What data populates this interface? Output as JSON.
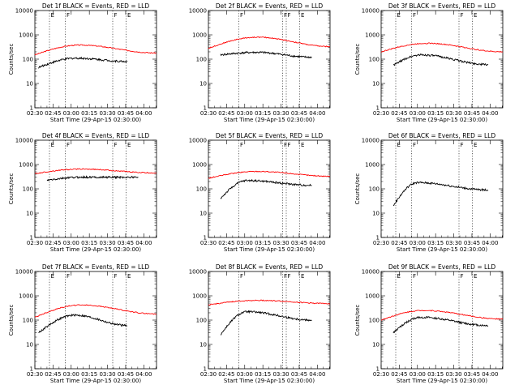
{
  "chart_data": [
    {
      "type": "line",
      "title": "Det 1f BLACK = Events, RED = LLD",
      "xlabel": "Start Time (29-Apr-15 02:30:00)",
      "ylabel": "Counts/sec",
      "y_scale": "log",
      "ylim": [
        1,
        10000
      ],
      "xlim": [
        0,
        100
      ],
      "x_ticks": [
        "02:30",
        "02:45",
        "03:00",
        "03:15",
        "03:30",
        "03:45",
        "04:00"
      ],
      "y_ticks": [
        "1",
        "10",
        "100",
        "1000",
        "10000"
      ],
      "markers": [
        {
          "label": "E",
          "t": 12
        },
        {
          "label": "F",
          "t": 25
        },
        {
          "label": "F",
          "t": 64
        },
        {
          "label": "E",
          "t": 75
        }
      ],
      "series": [
        {
          "color": "#ff0000",
          "data_start": 0,
          "data_end": 100,
          "start_level": 150,
          "peak_level": 380,
          "peak_at": 37,
          "end_level": 180
        },
        {
          "color": "#000000",
          "data_start": 3,
          "data_end": 76,
          "start_level": 45,
          "peak_level": 110,
          "peak_at": 34,
          "end_level": 80
        }
      ]
    },
    {
      "type": "line",
      "title": "Det 2f BLACK = Events, RED = LLD",
      "xlabel": "Start Time (29-Apr-15 02:30:00)",
      "ylabel": "",
      "y_scale": "log",
      "ylim": [
        1,
        10000
      ],
      "xlim": [
        0,
        100
      ],
      "x_ticks": [
        "02:30",
        "02:45",
        "03:00",
        "03:15",
        "03:30",
        "03:45",
        "04:00"
      ],
      "y_ticks": [
        "1",
        "10",
        "100",
        "1000",
        "10000"
      ],
      "markers": [
        {
          "label": "F",
          "t": 25
        },
        {
          "label": "F",
          "t": 61
        },
        {
          "label": "F",
          "t": 64
        },
        {
          "label": "E",
          "t": 75
        }
      ],
      "series": [
        {
          "color": "#ff0000",
          "data_start": 0,
          "data_end": 100,
          "start_level": 280,
          "peak_level": 800,
          "peak_at": 40,
          "end_level": 330
        },
        {
          "color": "#000000",
          "data_start": 10,
          "data_end": 85,
          "start_level": 150,
          "peak_level": 190,
          "peak_at": 40,
          "end_level": 120
        }
      ]
    },
    {
      "type": "line",
      "title": "Det 3f BLACK = Events, RED = LLD",
      "xlabel": "Start Time (29-Apr-15 02:30:00)",
      "ylabel": "Counts/sec",
      "y_scale": "log",
      "ylim": [
        1,
        10000
      ],
      "xlim": [
        0,
        100
      ],
      "x_ticks": [
        "02:30",
        "02:45",
        "03:00",
        "03:15",
        "03:30",
        "03:45",
        "04:00"
      ],
      "y_ticks": [
        "1",
        "10",
        "100",
        "1000",
        "10000"
      ],
      "markers": [
        {
          "label": "E",
          "t": 12
        },
        {
          "label": "F",
          "t": 25
        },
        {
          "label": "F",
          "t": 64
        },
        {
          "label": "E",
          "t": 75
        }
      ],
      "series": [
        {
          "color": "#ff0000",
          "data_start": 0,
          "data_end": 100,
          "start_level": 200,
          "peak_level": 450,
          "peak_at": 38,
          "end_level": 200
        },
        {
          "color": "#000000",
          "data_start": 10,
          "data_end": 88,
          "start_level": 55,
          "peak_level": 150,
          "peak_at": 33,
          "end_level": 60
        }
      ]
    },
    {
      "type": "line",
      "title": "Det 4f BLACK = Events, RED = LLD",
      "xlabel": "Start Time (29-Apr-15 02:30:00)",
      "ylabel": "Counts/sec",
      "y_scale": "log",
      "ylim": [
        1,
        10000
      ],
      "xlim": [
        0,
        100
      ],
      "x_ticks": [
        "02:30",
        "02:45",
        "03:00",
        "03:15",
        "03:30",
        "03:45",
        "04:00"
      ],
      "y_ticks": [
        "1",
        "10",
        "100",
        "1000",
        "10000"
      ],
      "markers": [
        {
          "label": "E",
          "t": 12
        },
        {
          "label": "F",
          "t": 25
        },
        {
          "label": "F",
          "t": 64
        },
        {
          "label": "E",
          "t": 75
        }
      ],
      "series": [
        {
          "color": "#ff0000",
          "data_start": 0,
          "data_end": 100,
          "start_level": 420,
          "peak_level": 650,
          "peak_at": 38,
          "end_level": 450
        },
        {
          "color": "#000000",
          "data_start": 10,
          "data_end": 85,
          "start_level": 220,
          "peak_level": 300,
          "peak_at": 38,
          "end_level": 300
        }
      ]
    },
    {
      "type": "line",
      "title": "Det 5f BLACK = Events, RED = LLD",
      "xlabel": "Start Time (29-Apr-15 02:30:00)",
      "ylabel": "",
      "y_scale": "log",
      "ylim": [
        1,
        10000
      ],
      "xlim": [
        0,
        100
      ],
      "x_ticks": [
        "02:30",
        "02:45",
        "03:00",
        "03:15",
        "03:30",
        "03:45",
        "04:00"
      ],
      "y_ticks": [
        "1",
        "10",
        "100",
        "1000",
        "10000"
      ],
      "markers": [
        {
          "label": "F",
          "t": 25
        },
        {
          "label": "F",
          "t": 61
        },
        {
          "label": "F",
          "t": 64
        },
        {
          "label": "E",
          "t": 75
        }
      ],
      "series": [
        {
          "color": "#ff0000",
          "data_start": 0,
          "data_end": 100,
          "start_level": 270,
          "peak_level": 520,
          "peak_at": 40,
          "end_level": 330
        },
        {
          "color": "#000000",
          "data_start": 10,
          "data_end": 85,
          "start_level": 40,
          "peak_level": 220,
          "peak_at": 32,
          "end_level": 140
        }
      ]
    },
    {
      "type": "line",
      "title": "Det 6f BLACK = Events, RED = LLD",
      "xlabel": "Start Time (29-Apr-15 02:30:00)",
      "ylabel": "Counts/sec",
      "y_scale": "log",
      "ylim": [
        1,
        10000
      ],
      "xlim": [
        0,
        100
      ],
      "x_ticks": [
        "02:30",
        "02:45",
        "03:00",
        "03:15",
        "03:30",
        "03:45",
        "04:00"
      ],
      "y_ticks": [
        "1",
        "10",
        "100",
        "1000",
        "10000"
      ],
      "markers": [
        {
          "label": "E",
          "t": 12
        },
        {
          "label": "F",
          "t": 25
        },
        {
          "label": "F",
          "t": 64
        },
        {
          "label": "E",
          "t": 75
        }
      ],
      "series": [
        {
          "color": "#000000",
          "data_start": 10,
          "data_end": 88,
          "start_level": 20,
          "peak_level": 180,
          "peak_at": 30,
          "end_level": 90
        }
      ]
    },
    {
      "type": "line",
      "title": "Det 7f BLACK = Events, RED = LLD",
      "xlabel": "Start Time (29-Apr-15 02:30:00)",
      "ylabel": "Counts/sec",
      "y_scale": "log",
      "ylim": [
        1,
        10000
      ],
      "xlim": [
        0,
        100
      ],
      "x_ticks": [
        "02:30",
        "02:45",
        "03:00",
        "03:15",
        "03:30",
        "03:45",
        "04:00"
      ],
      "y_ticks": [
        "1",
        "10",
        "100",
        "1000",
        "10000"
      ],
      "markers": [
        {
          "label": "E",
          "t": 12
        },
        {
          "label": "F",
          "t": 25
        },
        {
          "label": "F",
          "t": 64
        },
        {
          "label": "E",
          "t": 75
        }
      ],
      "series": [
        {
          "color": "#ff0000",
          "data_start": 0,
          "data_end": 100,
          "start_level": 130,
          "peak_level": 420,
          "peak_at": 38,
          "end_level": 180
        },
        {
          "color": "#000000",
          "data_start": 3,
          "data_end": 76,
          "start_level": 30,
          "peak_level": 160,
          "peak_at": 33,
          "end_level": 60
        }
      ]
    },
    {
      "type": "line",
      "title": "Det 8f BLACK = Events, RED = LLD",
      "xlabel": "Start Time (29-Apr-15 02:30:00)",
      "ylabel": "",
      "y_scale": "log",
      "ylim": [
        1,
        10000
      ],
      "xlim": [
        0,
        100
      ],
      "x_ticks": [
        "02:30",
        "02:45",
        "03:00",
        "03:15",
        "03:30",
        "03:45",
        "04:00"
      ],
      "y_ticks": [
        "1",
        "10",
        "100",
        "1000",
        "10000"
      ],
      "markers": [
        {
          "label": "F",
          "t": 25
        },
        {
          "label": "F",
          "t": 61
        },
        {
          "label": "F",
          "t": 64
        },
        {
          "label": "E",
          "t": 75
        }
      ],
      "series": [
        {
          "color": "#ff0000",
          "data_start": 0,
          "data_end": 100,
          "start_level": 420,
          "peak_level": 650,
          "peak_at": 40,
          "end_level": 480
        },
        {
          "color": "#000000",
          "data_start": 10,
          "data_end": 85,
          "start_level": 25,
          "peak_level": 220,
          "peak_at": 32,
          "end_level": 100
        }
      ]
    },
    {
      "type": "line",
      "title": "Det 9f BLACK = Events, RED = LLD",
      "xlabel": "Start Time (29-Apr-15 02:30:00)",
      "ylabel": "Counts/sec",
      "y_scale": "log",
      "ylim": [
        1,
        10000
      ],
      "xlim": [
        0,
        100
      ],
      "x_ticks": [
        "02:30",
        "02:45",
        "03:00",
        "03:15",
        "03:30",
        "03:45",
        "04:00"
      ],
      "y_ticks": [
        "1",
        "10",
        "100",
        "1000",
        "10000"
      ],
      "markers": [
        {
          "label": "E",
          "t": 12
        },
        {
          "label": "F",
          "t": 25
        },
        {
          "label": "F",
          "t": 64
        },
        {
          "label": "E",
          "t": 75
        }
      ],
      "series": [
        {
          "color": "#ff0000",
          "data_start": 0,
          "data_end": 100,
          "start_level": 100,
          "peak_level": 250,
          "peak_at": 35,
          "end_level": 110
        },
        {
          "color": "#000000",
          "data_start": 10,
          "data_end": 88,
          "start_level": 30,
          "peak_level": 130,
          "peak_at": 33,
          "end_level": 60
        }
      ]
    }
  ]
}
